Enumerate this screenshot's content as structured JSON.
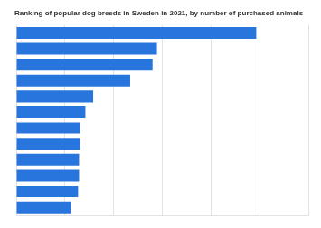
{
  "chart_data": {
    "type": "bar",
    "orientation": "horizontal",
    "title": "Ranking of popular dog breeds in Sweden in 2021, by number of purchased animals",
    "categories": [
      null,
      null,
      null,
      null,
      null,
      null,
      null,
      null,
      null,
      null,
      null,
      null
    ],
    "values": [
      4930,
      2890,
      2800,
      2340,
      1580,
      1420,
      1310,
      1310,
      1290,
      1290,
      1270,
      1120
    ],
    "color": "#2876dd",
    "xlim": [
      0,
      6000
    ],
    "xticks": [
      0,
      1000,
      2000,
      3000,
      4000,
      5000,
      6000
    ],
    "grid": true,
    "tick_labels": false
  }
}
